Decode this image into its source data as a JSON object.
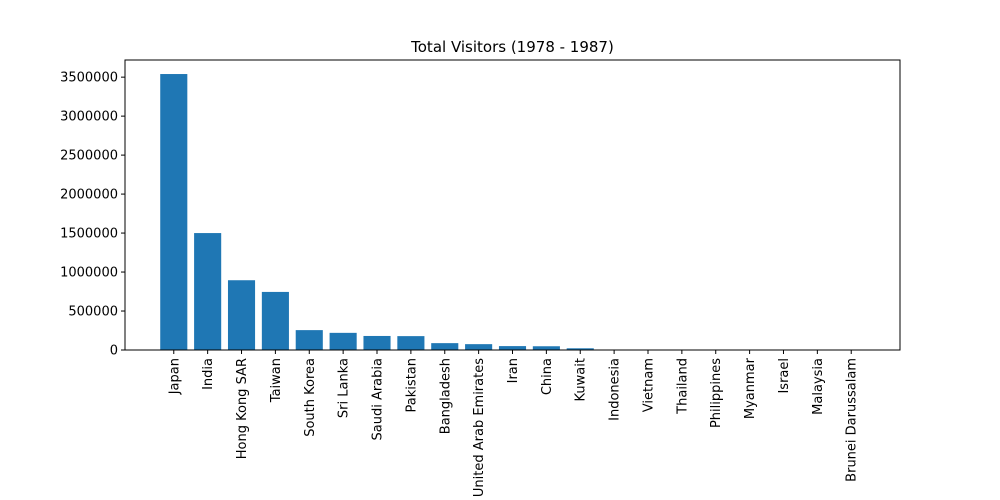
{
  "chart_data": {
    "type": "bar",
    "title": "Total Visitors (1978 - 1987)",
    "xlabel": "",
    "ylabel": "",
    "categories": [
      "Japan",
      "India",
      "Hong Kong SAR",
      "Taiwan",
      "South Korea",
      "Sri Lanka",
      "Saudi Arabia",
      "Pakistan",
      "Bangladesh",
      "United Arab Emirates",
      "Iran",
      "China",
      "Kuwait",
      "Indonesia",
      "Vietnam",
      "Thailand",
      "Philippines",
      "Myanmar",
      "Israel",
      "Malaysia",
      "Brunei Darussalam"
    ],
    "values": [
      3540000,
      1500000,
      895000,
      745000,
      255000,
      220000,
      180000,
      178000,
      88000,
      75000,
      50000,
      48000,
      22000,
      2000,
      1500,
      1200,
      1000,
      800,
      600,
      500,
      300
    ],
    "ylim": [
      0,
      3720000
    ],
    "yticks": [
      0,
      500000,
      1000000,
      1500000,
      2000000,
      2500000,
      3000000,
      3500000
    ],
    "ytick_labels": [
      "0",
      "500000",
      "1000000",
      "1500000",
      "2000000",
      "2500000",
      "3000000",
      "3500000"
    ],
    "grid": false,
    "bar_color": "#1f77b4"
  }
}
